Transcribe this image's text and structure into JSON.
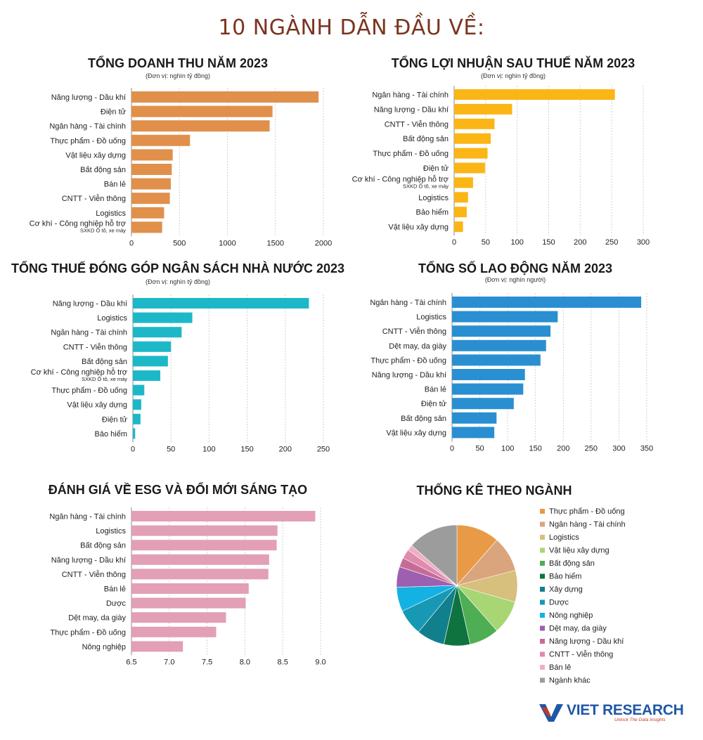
{
  "page": {
    "title": "10 NGÀNH DẪN ĐẦU VỀ:"
  },
  "chart_data": [
    {
      "id": "revenue",
      "type": "bar",
      "orientation": "horizontal",
      "title": "TỔNG DOANH THU NĂM 2023",
      "unit": "(Đơn vị: nghìn tỷ đồng)",
      "color": "#e0904a",
      "xlim": [
        0,
        2000
      ],
      "ticks": [
        0,
        500,
        1000,
        1500,
        2000
      ],
      "categories": [
        "Năng lượng - Dầu khí",
        "Điện tử",
        "Ngân hàng - Tài chính",
        "Thực phẩm - Đồ uống",
        "Vật liệu xây dựng",
        "Bất động sản",
        "Bán lẻ",
        "CNTT - Viễn thông",
        "Logistics",
        "Cơ khí - Công nghiệp hỗ trợ"
      ],
      "sublabels": [
        "",
        "",
        "",
        "",
        "",
        "",
        "",
        "",
        "",
        "SXKD Ô tô, xe máy"
      ],
      "values": [
        1950,
        1470,
        1440,
        610,
        430,
        420,
        410,
        400,
        340,
        320
      ]
    },
    {
      "id": "profit",
      "type": "bar",
      "orientation": "horizontal",
      "title": "TỔNG LỢI NHUẬN SAU THUẾ NĂM 2023",
      "unit": "(Đơn vị: nghìn tỷ đồng)",
      "color": "#fbb515",
      "xlim": [
        0,
        300
      ],
      "ticks": [
        0,
        50,
        100,
        150,
        200,
        250,
        300
      ],
      "categories": [
        "Ngân hàng - Tài chính",
        "Năng lượng - Dầu khí",
        "CNTT - Viễn thông",
        "Bất động sản",
        "Thực phẩm - Đồ uống",
        "Điện tử",
        "Cơ khí - Công nghiệp hỗ trợ",
        "Logistics",
        "Bảo hiểm",
        "Vật liệu xây dựng"
      ],
      "sublabels": [
        "",
        "",
        "",
        "",
        "",
        "",
        "SXKD Ô tô, xe máy",
        "",
        "",
        ""
      ],
      "values": [
        255,
        92,
        64,
        58,
        53,
        49,
        30,
        22,
        20,
        14
      ]
    },
    {
      "id": "tax",
      "type": "bar",
      "orientation": "horizontal",
      "title": "TỔNG THUẾ ĐÓNG GÓP NGÂN SÁCH NHÀ NƯỚC 2023",
      "unit": "(Đơn vị: nghìn tỷ đồng)",
      "color": "#1db8c8",
      "xlim": [
        0,
        250
      ],
      "ticks": [
        0,
        50,
        100,
        150,
        200,
        250
      ],
      "categories": [
        "Năng lượng - Dầu khí",
        "Logistics",
        "Ngân hàng - Tài chính",
        "CNTT - Viễn thông",
        "Bất động sản",
        "Cơ khí - Công nghiệp hỗ trợ",
        "Thực phẩm - Đồ uống",
        "Vật liệu xây dựng",
        "Điện tử",
        "Bảo hiểm"
      ],
      "sublabels": [
        "",
        "",
        "",
        "",
        "",
        "SXKD Ô tô, xe máy",
        "",
        "",
        "",
        ""
      ],
      "values": [
        231,
        78,
        64,
        50,
        46,
        36,
        15,
        11,
        10,
        3
      ]
    },
    {
      "id": "labor",
      "type": "bar",
      "orientation": "horizontal",
      "title": "TỔNG SỐ LAO ĐỘNG NĂM 2023",
      "unit": "(Đơn vị: nghìn người)",
      "color": "#2a8fd0",
      "xlim": [
        0,
        350
      ],
      "ticks": [
        0,
        50,
        100,
        150,
        200,
        250,
        300,
        350
      ],
      "categories": [
        "Ngân hàng - Tài chính",
        "Logistics",
        "CNTT - Viễn thông",
        "Dệt may, da giày",
        "Thực phẩm - Đồ uống",
        "Năng lượng - Dầu khí",
        "Bán lẻ",
        "Điện tử",
        "Bất động sản",
        "Vật liệu xây dựng"
      ],
      "sublabels": [
        "",
        "",
        "",
        "",
        "",
        "",
        "",
        "",
        "",
        ""
      ],
      "values": [
        340,
        190,
        177,
        169,
        159,
        131,
        128,
        111,
        80,
        76
      ]
    },
    {
      "id": "esg",
      "type": "bar",
      "orientation": "horizontal",
      "title": "ĐÁNH GIÁ VỀ ESG VÀ ĐỔI MỚI SÁNG TẠO",
      "unit": "",
      "color": "#e29fb6",
      "xlim": [
        6.5,
        9.0
      ],
      "ticks": [
        "6.5",
        "7.0",
        "7.5",
        "8.0",
        "8.5",
        "9.0"
      ],
      "categories": [
        "Ngân hàng - Tài chính",
        "Logistics",
        "Bất động sản",
        "Năng lượng - Dầu khí",
        "CNTT - Viễn thông",
        "Bán lẻ",
        "Dược",
        "Dệt may, da giày",
        "Thực phẩm - Đồ uống",
        "Nông nghiệp"
      ],
      "sublabels": [
        "",
        "",
        "",
        "",
        "",
        "",
        "",
        "",
        "",
        ""
      ],
      "values": [
        8.93,
        8.43,
        8.42,
        8.32,
        8.31,
        8.05,
        8.01,
        7.75,
        7.62,
        7.18
      ]
    },
    {
      "id": "sector",
      "type": "pie",
      "title": "THỐNG KÊ THEO NGÀNH",
      "labels": [
        "Thực phẩm - Đồ uống",
        "Ngân hàng - Tài chính",
        "Logistics",
        "Vật liệu xây dựng",
        "Bất động sản",
        "Bảo hiểm",
        "Xây dựng",
        "Dược",
        "Nông nghiệp",
        "Dệt may, da giày",
        "Năng lượng - Dầu khí",
        "CNTT - Viễn thông",
        "Bán lẻ",
        "Ngành khác"
      ],
      "values": [
        11.5,
        9.5,
        8.5,
        9,
        8,
        7,
        7.5,
        7,
        6.5,
        5.5,
        2.5,
        2.5,
        1.5,
        13.5
      ],
      "colors": [
        "#e89a46",
        "#daa57c",
        "#d7bf7d",
        "#a8d674",
        "#4fae54",
        "#0f7340",
        "#117f8c",
        "#1799b5",
        "#14b2e3",
        "#9d5fb0",
        "#c56c96",
        "#e08aae",
        "#efafc3",
        "#9c9c9c"
      ]
    }
  ],
  "logo": {
    "brand": "VIET RESEARCH",
    "tagline": "Unlock The Data Insights"
  }
}
